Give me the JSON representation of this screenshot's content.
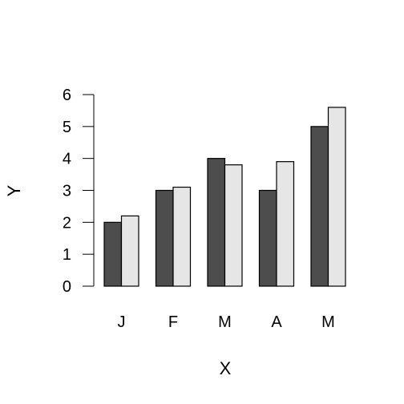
{
  "chart_data": {
    "type": "bar",
    "categories": [
      "J",
      "F",
      "M",
      "A",
      "M"
    ],
    "series": [
      {
        "values": [
          2.0,
          3.0,
          4.0,
          3.0,
          5.0
        ],
        "color": "#4d4d4d"
      },
      {
        "values": [
          2.2,
          3.1,
          3.8,
          3.9,
          5.6
        ],
        "color": "#e6e6e6"
      }
    ],
    "title": "",
    "xlabel": "X",
    "ylabel": "Y",
    "ylim": [
      0,
      6
    ],
    "yticks": [
      "0",
      "1",
      "2",
      "3",
      "4",
      "5",
      "6"
    ],
    "grid": false,
    "legend": "none"
  }
}
